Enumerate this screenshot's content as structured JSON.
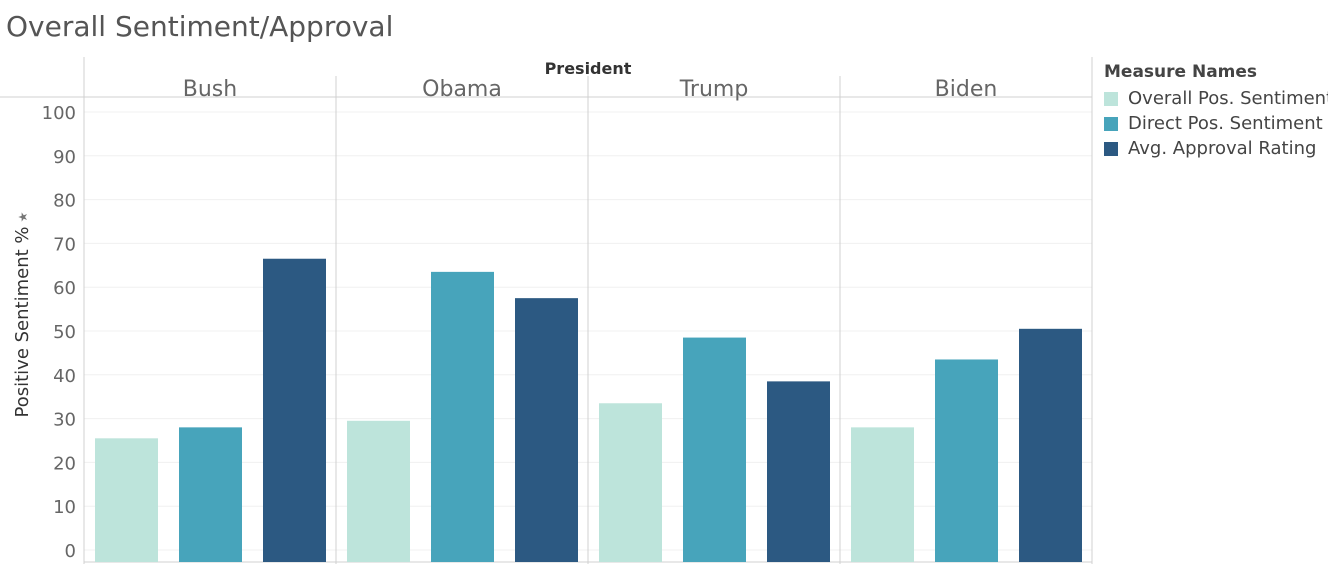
{
  "title": "Overall Sentiment/Approval",
  "chart_data": {
    "type": "bar",
    "title": "Overall Sentiment/Approval",
    "column_header": "President",
    "categories": [
      "Bush",
      "Obama",
      "Trump",
      "Biden"
    ],
    "ylabel": "Positive Sentiment %",
    "ylim": [
      0,
      100
    ],
    "yticks": [
      0,
      10,
      20,
      30,
      40,
      50,
      60,
      70,
      80,
      90,
      100
    ],
    "gridlines": true,
    "legend_title": "Measure Names",
    "legend_position": "right",
    "series": [
      {
        "name": "Overall Pos. Sentiment",
        "color": "#bde4db",
        "values": [
          25.5,
          29.5,
          33.5,
          28
        ]
      },
      {
        "name": "Direct Pos. Sentiment",
        "color": "#47a4bb",
        "values": [
          28,
          63.5,
          48.5,
          43.5
        ]
      },
      {
        "name": "Avg. Approval Rating",
        "color": "#2c5982",
        "values": [
          66.5,
          57.5,
          38.5,
          50.5
        ]
      }
    ]
  }
}
